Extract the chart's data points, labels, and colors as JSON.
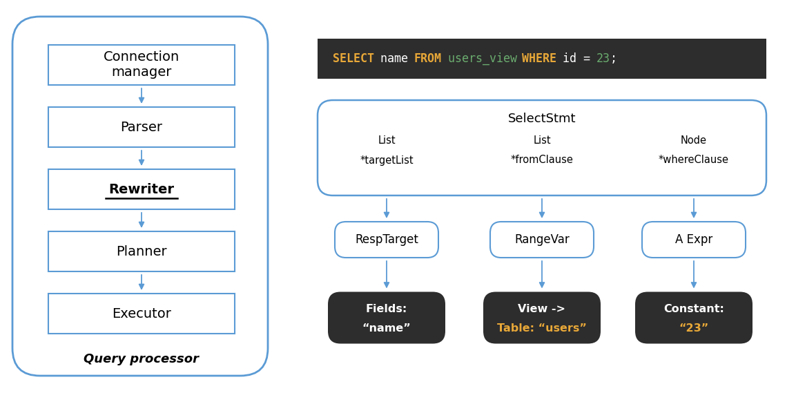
{
  "bg_color": "#ffffff",
  "blue_border": "#5B9BD5",
  "dark_bg": "#2d2d2d",
  "white": "#ffffff",
  "black": "#000000",
  "orange": "#E8A838",
  "green_text": "#6AAB6E",
  "arrow_color": "#5B9BD5",
  "left_boxes": [
    {
      "label": "Connection\nmanager",
      "bold": false,
      "underline": false
    },
    {
      "label": "Parser",
      "bold": false,
      "underline": false
    },
    {
      "label": "Rewriter",
      "bold": true,
      "underline": true
    },
    {
      "label": "Planner",
      "bold": false,
      "underline": false
    },
    {
      "label": "Executor",
      "bold": false,
      "underline": false
    }
  ],
  "query_processor_label": "Query processor",
  "sql_parts": [
    {
      "text": "SELECT",
      "color": "#E8A838",
      "bold": true
    },
    {
      "text": " name ",
      "color": "#ffffff",
      "bold": false
    },
    {
      "text": "FROM",
      "color": "#E8A838",
      "bold": true
    },
    {
      "text": " users_view ",
      "color": "#6AAB6E",
      "bold": false
    },
    {
      "text": "WHERE",
      "color": "#E8A838",
      "bold": true
    },
    {
      "text": " id = ",
      "color": "#ffffff",
      "bold": false
    },
    {
      "text": "23",
      "color": "#6AAB6E",
      "bold": false
    },
    {
      "text": ";",
      "color": "#ffffff",
      "bold": false
    }
  ],
  "select_stmt_label": "SelectStmt",
  "select_stmt_cols": [
    {
      "line1": "List",
      "line2": "*targetList"
    },
    {
      "line1": "List",
      "line2": "*fromClause"
    },
    {
      "line1": "Node",
      "line2": "*whereClause"
    }
  ],
  "mid_boxes": [
    {
      "label": "RespTarget"
    },
    {
      "label": "RangeVar"
    },
    {
      "label": "A Expr"
    }
  ],
  "bottom_boxes": [
    {
      "line1": "Fields:",
      "line2": "“name”",
      "line2_color": "#ffffff"
    },
    {
      "line1": "View ->",
      "line2": "Table: “users”",
      "line2_color": "#E8A838"
    },
    {
      "line1": "Constant:",
      "line2": "“23”",
      "line2_color": "#E8A838"
    }
  ]
}
